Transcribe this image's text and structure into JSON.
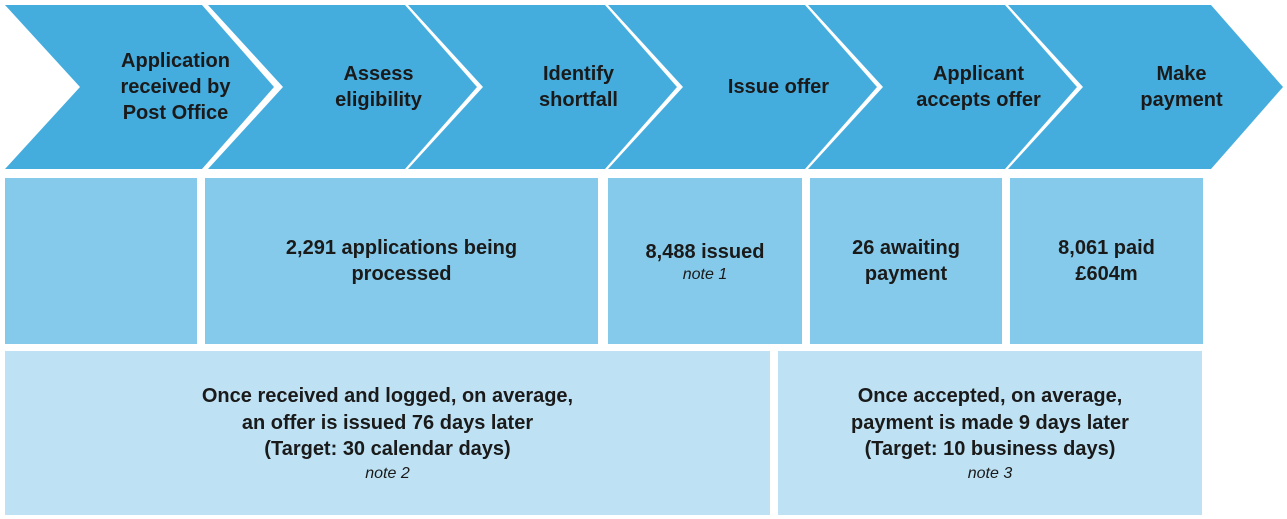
{
  "colors": {
    "chevron_blue": "#45ACDE",
    "stat_box_blue": "#85CAEA",
    "note_box_blue": "#BEE2F4",
    "text": "#1A1A1A",
    "background": "#FFFFFF"
  },
  "steps": [
    {
      "label": "Application\nreceived by\nPost Office"
    },
    {
      "label": "Assess\neligibility"
    },
    {
      "label": "Identify\nshortfall"
    },
    {
      "label": "Issue offer"
    },
    {
      "label": "Applicant\naccepts offer"
    },
    {
      "label": "Make\npayment"
    }
  ],
  "stats": [
    {
      "text": "",
      "note": ""
    },
    {
      "text": "2,291 applications being\nprocessed",
      "note": ""
    },
    {
      "text": "8,488 issued",
      "note": "note 1"
    },
    {
      "text": "26 awaiting\npayment",
      "note": ""
    },
    {
      "text": "8,061 paid\n£604m",
      "note": ""
    }
  ],
  "notes": [
    {
      "text": "Once received and logged, on average,\nan offer is issued 76 days later\n(Target: 30 calendar days)",
      "note": "note 2"
    },
    {
      "text": "Once accepted, on average,\npayment is made 9 days later\n(Target: 10 business days)",
      "note": "note 3"
    }
  ]
}
